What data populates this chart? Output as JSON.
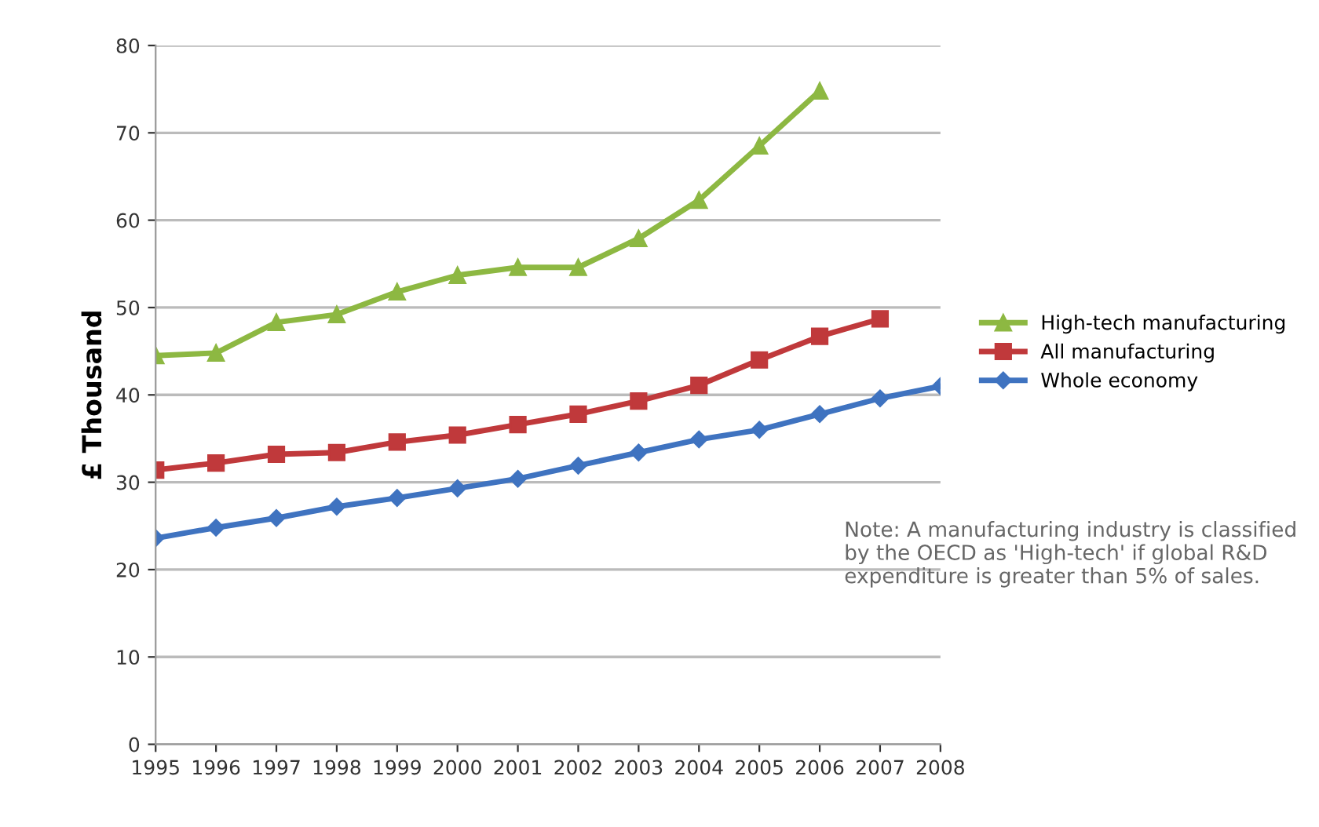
{
  "chart_data": {
    "type": "line",
    "ylabel": "£ Thousand",
    "categories": [
      "1995",
      "1996",
      "1997",
      "1998",
      "1999",
      "2000",
      "2001",
      "2002",
      "2003",
      "2004",
      "2005",
      "2006",
      "2007",
      "2008"
    ],
    "series": [
      {
        "name": "High-tech manufacturing",
        "color": "#8db842",
        "marker": "triangle",
        "values": [
          44.5,
          44.8,
          48.3,
          49.2,
          51.8,
          53.7,
          54.6,
          54.6,
          57.9,
          62.3,
          68.5,
          74.8,
          null,
          null
        ]
      },
      {
        "name": "All manufacturing",
        "color": "#c0393b",
        "marker": "square",
        "values": [
          31.4,
          32.2,
          33.2,
          33.4,
          34.6,
          35.4,
          36.6,
          37.8,
          39.3,
          41.1,
          44.0,
          46.7,
          48.7,
          null
        ]
      },
      {
        "name": "Whole economy",
        "color": "#3f73c0",
        "marker": "diamond",
        "values": [
          23.6,
          24.8,
          25.9,
          27.2,
          28.2,
          29.3,
          30.4,
          31.9,
          33.4,
          34.9,
          36.0,
          37.8,
          39.6,
          41.0
        ]
      }
    ],
    "ylim": [
      0,
      80
    ],
    "yticks": [
      0,
      10,
      20,
      30,
      40,
      50,
      60,
      70,
      80
    ],
    "grid": "y",
    "legend": "right",
    "annotations": [
      "Note: A manufacturing industry is classified by the OECD as 'High-tech' if global R&D expenditure is greater than 5% of sales."
    ]
  }
}
